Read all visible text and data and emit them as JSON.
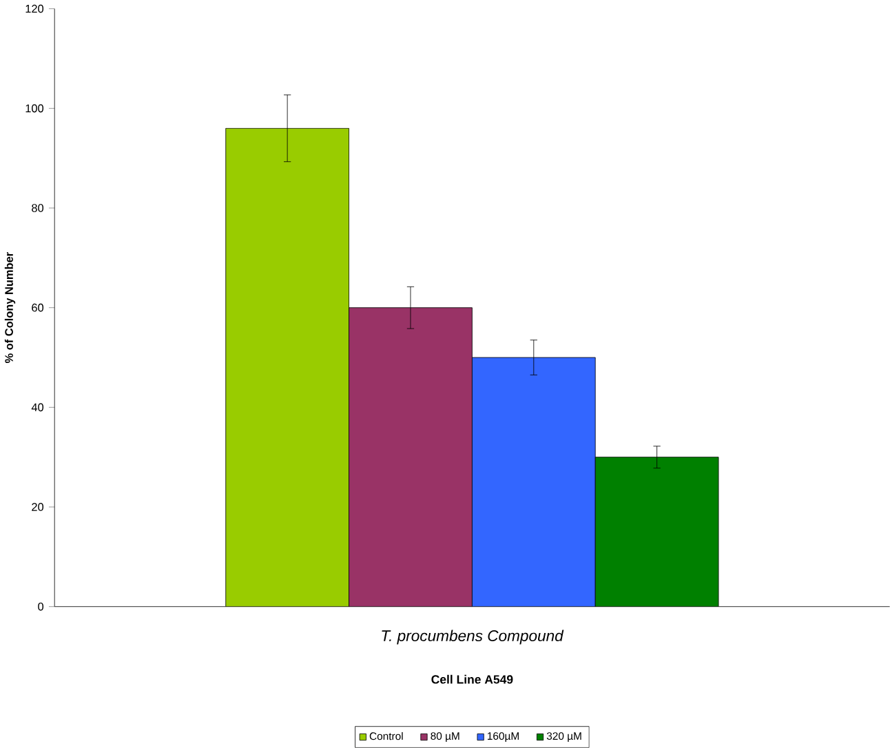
{
  "chart_data": {
    "type": "bar",
    "title": "Cell Line A549",
    "xlabel": "*T. procumbens Compound*",
    "ylabel": "**% of Colony Number**",
    "categories": [
      null
    ],
    "series": [
      {
        "name": "Control",
        "color": "#99cc00",
        "values": [
          96
        ],
        "errors": [
          6.7
        ]
      },
      {
        "name": "80 µM",
        "color": "#993366",
        "values": [
          60
        ],
        "errors": [
          4.2
        ]
      },
      {
        "name": "160µM",
        "color": "#3366ff",
        "values": [
          50
        ],
        "errors": [
          3.5
        ]
      },
      {
        "name": "320 µM",
        "color": "#008000",
        "values": [
          30
        ],
        "errors": [
          2.2
        ]
      }
    ],
    "ylim": [
      0,
      120
    ],
    "yticks": [
      0,
      20,
      40,
      60,
      80,
      100,
      120
    ],
    "legend": "bottom",
    "grid": false
  }
}
